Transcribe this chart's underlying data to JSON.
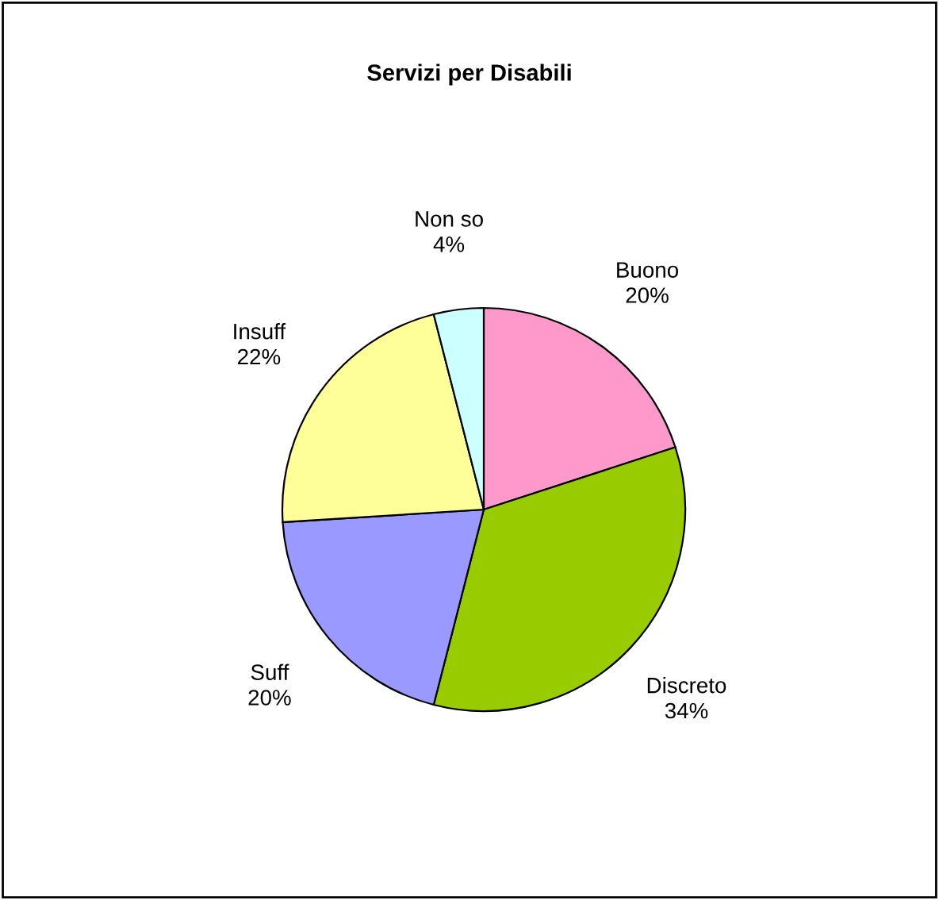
{
  "chart_data": {
    "type": "pie",
    "title": "Servizi per Disabili",
    "categories": [
      "Buono",
      "Discreto",
      "Suff",
      "Insuff",
      "Non so"
    ],
    "values": [
      20,
      34,
      20,
      22,
      4
    ],
    "value_labels": [
      "20%",
      "34%",
      "20%",
      "22%",
      "4%"
    ],
    "colors": [
      "#ff99cc",
      "#99cc00",
      "#9999ff",
      "#ffff99",
      "#ccffff"
    ],
    "legend": false
  }
}
